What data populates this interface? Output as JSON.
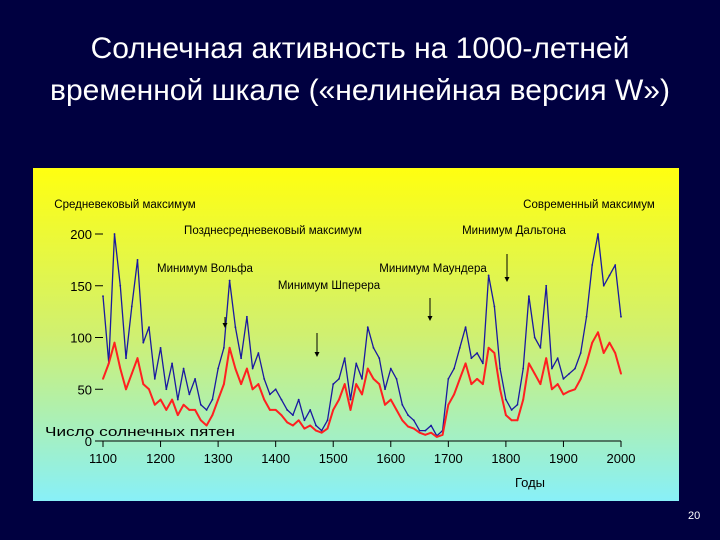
{
  "slide": {
    "title_line1": "Солнечная активность на 1000-летней",
    "title_line2": "временной шкале («нелинейная версия W»)",
    "page_number": "20"
  },
  "chart_data": {
    "type": "line",
    "xlabel": "Годы",
    "ylabel": "Число солнечных пятен",
    "xlim": [
      1100,
      2000
    ],
    "ylim": [
      0,
      200
    ],
    "x_ticks": [
      1100,
      1200,
      1300,
      1400,
      1500,
      1600,
      1700,
      1800,
      1900,
      2000
    ],
    "y_ticks": [
      0,
      50,
      100,
      150,
      200
    ],
    "annotations": [
      {
        "label": "Средневековый максимум",
        "x": 1160,
        "arrow": false
      },
      {
        "label": "Позднесредневековый максимум",
        "x": 1370,
        "arrow": false
      },
      {
        "label": "Минимум Вольфа",
        "x": 1300,
        "arrow": true
      },
      {
        "label": "Минимум Шперера",
        "x": 1480,
        "arrow": true
      },
      {
        "label": "Минимум Маундера",
        "x": 1680,
        "arrow": true
      },
      {
        "label": "Современный максимум",
        "x": 1900,
        "arrow": false
      },
      {
        "label": "Минимум Дальтона",
        "x": 1800,
        "arrow": true
      }
    ],
    "series": [
      {
        "color": "#1a1aa0",
        "x": [
          1100,
          1110,
          1120,
          1130,
          1140,
          1150,
          1160,
          1170,
          1180,
          1190,
          1200,
          1210,
          1220,
          1230,
          1240,
          1250,
          1260,
          1270,
          1280,
          1290,
          1300,
          1310,
          1320,
          1330,
          1340,
          1350,
          1360,
          1370,
          1380,
          1390,
          1400,
          1410,
          1420,
          1430,
          1440,
          1450,
          1460,
          1470,
          1480,
          1490,
          1500,
          1510,
          1520,
          1530,
          1540,
          1550,
          1560,
          1570,
          1580,
          1590,
          1600,
          1610,
          1620,
          1630,
          1640,
          1650,
          1660,
          1670,
          1680,
          1690,
          1700,
          1710,
          1720,
          1730,
          1740,
          1750,
          1760,
          1770,
          1780,
          1790,
          1800,
          1810,
          1820,
          1830,
          1840,
          1850,
          1860,
          1870,
          1880,
          1890,
          1900,
          1910,
          1920,
          1930,
          1940,
          1950,
          1960,
          1970,
          1980,
          1990,
          2000
        ],
        "values": [
          140,
          75,
          200,
          150,
          80,
          130,
          175,
          95,
          110,
          60,
          90,
          50,
          75,
          40,
          70,
          45,
          60,
          35,
          30,
          40,
          70,
          90,
          155,
          110,
          80,
          120,
          70,
          85,
          60,
          45,
          50,
          40,
          30,
          25,
          40,
          20,
          30,
          15,
          10,
          20,
          55,
          60,
          80,
          40,
          75,
          60,
          110,
          90,
          80,
          50,
          70,
          60,
          35,
          25,
          20,
          10,
          10,
          15,
          5,
          10,
          60,
          70,
          90,
          110,
          80,
          85,
          75,
          160,
          130,
          70,
          40,
          30,
          35,
          70,
          140,
          100,
          90,
          150,
          70,
          80,
          60,
          65,
          70,
          85,
          120,
          170,
          200,
          150,
          160,
          170,
          120
        ]
      },
      {
        "color": "#ff2020",
        "x": [
          1100,
          1110,
          1120,
          1130,
          1140,
          1150,
          1160,
          1170,
          1180,
          1190,
          1200,
          1210,
          1220,
          1230,
          1240,
          1250,
          1260,
          1270,
          1280,
          1290,
          1300,
          1310,
          1320,
          1330,
          1340,
          1350,
          1360,
          1370,
          1380,
          1390,
          1400,
          1410,
          1420,
          1430,
          1440,
          1450,
          1460,
          1470,
          1480,
          1490,
          1500,
          1510,
          1520,
          1530,
          1540,
          1550,
          1560,
          1570,
          1580,
          1590,
          1600,
          1610,
          1620,
          1630,
          1640,
          1650,
          1660,
          1670,
          1680,
          1690,
          1700,
          1710,
          1720,
          1730,
          1740,
          1750,
          1760,
          1770,
          1780,
          1790,
          1800,
          1810,
          1820,
          1830,
          1840,
          1850,
          1860,
          1870,
          1880,
          1890,
          1900,
          1910,
          1920,
          1930,
          1940,
          1950,
          1960,
          1970,
          1980,
          1990,
          2000
        ],
        "values": [
          60,
          75,
          95,
          70,
          50,
          65,
          80,
          55,
          50,
          35,
          40,
          30,
          40,
          25,
          35,
          30,
          30,
          20,
          15,
          25,
          40,
          55,
          90,
          70,
          55,
          70,
          50,
          55,
          40,
          30,
          30,
          25,
          18,
          15,
          20,
          12,
          15,
          10,
          8,
          12,
          30,
          40,
          55,
          30,
          55,
          45,
          70,
          60,
          55,
          35,
          40,
          30,
          20,
          14,
          12,
          8,
          6,
          8,
          4,
          6,
          35,
          45,
          60,
          75,
          55,
          60,
          55,
          90,
          85,
          50,
          25,
          20,
          20,
          40,
          75,
          65,
          55,
          80,
          50,
          55,
          45,
          48,
          50,
          60,
          75,
          95,
          105,
          85,
          95,
          85,
          65
        ]
      }
    ]
  }
}
